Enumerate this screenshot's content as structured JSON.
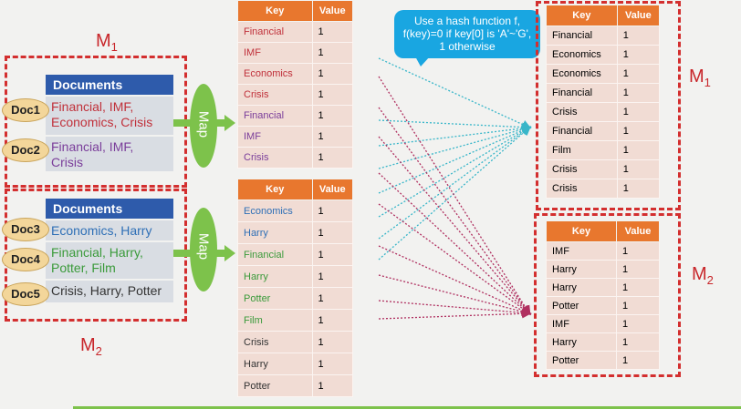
{
  "labels": {
    "m1_top": "M",
    "m1_top_sub": "1",
    "m2_bottom": "M",
    "m2_bottom_sub": "2",
    "m1_right": "M",
    "m1_right_sub": "1",
    "m2_right": "M",
    "m2_right_sub": "2"
  },
  "documents_header": "Documents",
  "map_label": "Map",
  "groups": [
    {
      "docs": [
        {
          "name": "Doc1",
          "text": "Financial, IMF, Economics, Crisis",
          "color": "#c0303a"
        },
        {
          "name": "Doc2",
          "text": "Financial, IMF, Crisis",
          "color": "#7a3d9a"
        }
      ]
    },
    {
      "docs": [
        {
          "name": "Doc3",
          "text": "Economics, Harry",
          "color": "#2e6fb6"
        },
        {
          "name": "Doc4",
          "text": "Financial, Harry, Potter, Film",
          "color": "#3a9a3a"
        },
        {
          "name": "Doc5",
          "text": "Crisis, Harry, Potter",
          "color": "#333333"
        }
      ]
    }
  ],
  "table_headers": {
    "key": "Key",
    "value": "Value"
  },
  "map_output_1": [
    {
      "key": "Financial",
      "value": "1",
      "color": "#c0303a"
    },
    {
      "key": "IMF",
      "value": "1",
      "color": "#c0303a"
    },
    {
      "key": "Economics",
      "value": "1",
      "color": "#c0303a"
    },
    {
      "key": "Crisis",
      "value": "1",
      "color": "#c0303a"
    },
    {
      "key": "Financial",
      "value": "1",
      "color": "#7a3d9a"
    },
    {
      "key": "IMF",
      "value": "1",
      "color": "#7a3d9a"
    },
    {
      "key": "Crisis",
      "value": "1",
      "color": "#7a3d9a"
    }
  ],
  "map_output_2": [
    {
      "key": "Economics",
      "value": "1",
      "color": "#2e6fb6"
    },
    {
      "key": "Harry",
      "value": "1",
      "color": "#2e6fb6"
    },
    {
      "key": "Financial",
      "value": "1",
      "color": "#3a9a3a"
    },
    {
      "key": "Harry",
      "value": "1",
      "color": "#3a9a3a"
    },
    {
      "key": "Potter",
      "value": "1",
      "color": "#3a9a3a"
    },
    {
      "key": "Film",
      "value": "1",
      "color": "#3a9a3a"
    },
    {
      "key": "Crisis",
      "value": "1",
      "color": "#333333"
    },
    {
      "key": "Harry",
      "value": "1",
      "color": "#333333"
    },
    {
      "key": "Potter",
      "value": "1",
      "color": "#333333"
    }
  ],
  "partition_m1": [
    {
      "key": "Financial",
      "value": "1"
    },
    {
      "key": "Economics",
      "value": "1"
    },
    {
      "key": "Economics",
      "value": "1"
    },
    {
      "key": "Financial",
      "value": "1"
    },
    {
      "key": "Crisis",
      "value": "1"
    },
    {
      "key": "Financial",
      "value": "1"
    },
    {
      "key": "Film",
      "value": "1"
    },
    {
      "key": "Crisis",
      "value": "1"
    },
    {
      "key": "Crisis",
      "value": "1"
    }
  ],
  "partition_m2": [
    {
      "key": "IMF",
      "value": "1"
    },
    {
      "key": "Harry",
      "value": "1"
    },
    {
      "key": "Harry",
      "value": "1"
    },
    {
      "key": "Potter",
      "value": "1"
    },
    {
      "key": "IMF",
      "value": "1"
    },
    {
      "key": "Harry",
      "value": "1"
    },
    {
      "key": "Potter",
      "value": "1"
    }
  ],
  "callout": {
    "line1": "Use a hash function f,",
    "line2": "f(key)=0  if key[0] is 'A'~'G',",
    "line3": "1  otherwise"
  },
  "colors": {
    "m1_lines": "#38b6c9",
    "m2_lines": "#b03060",
    "accent_red": "#d32f2f"
  }
}
